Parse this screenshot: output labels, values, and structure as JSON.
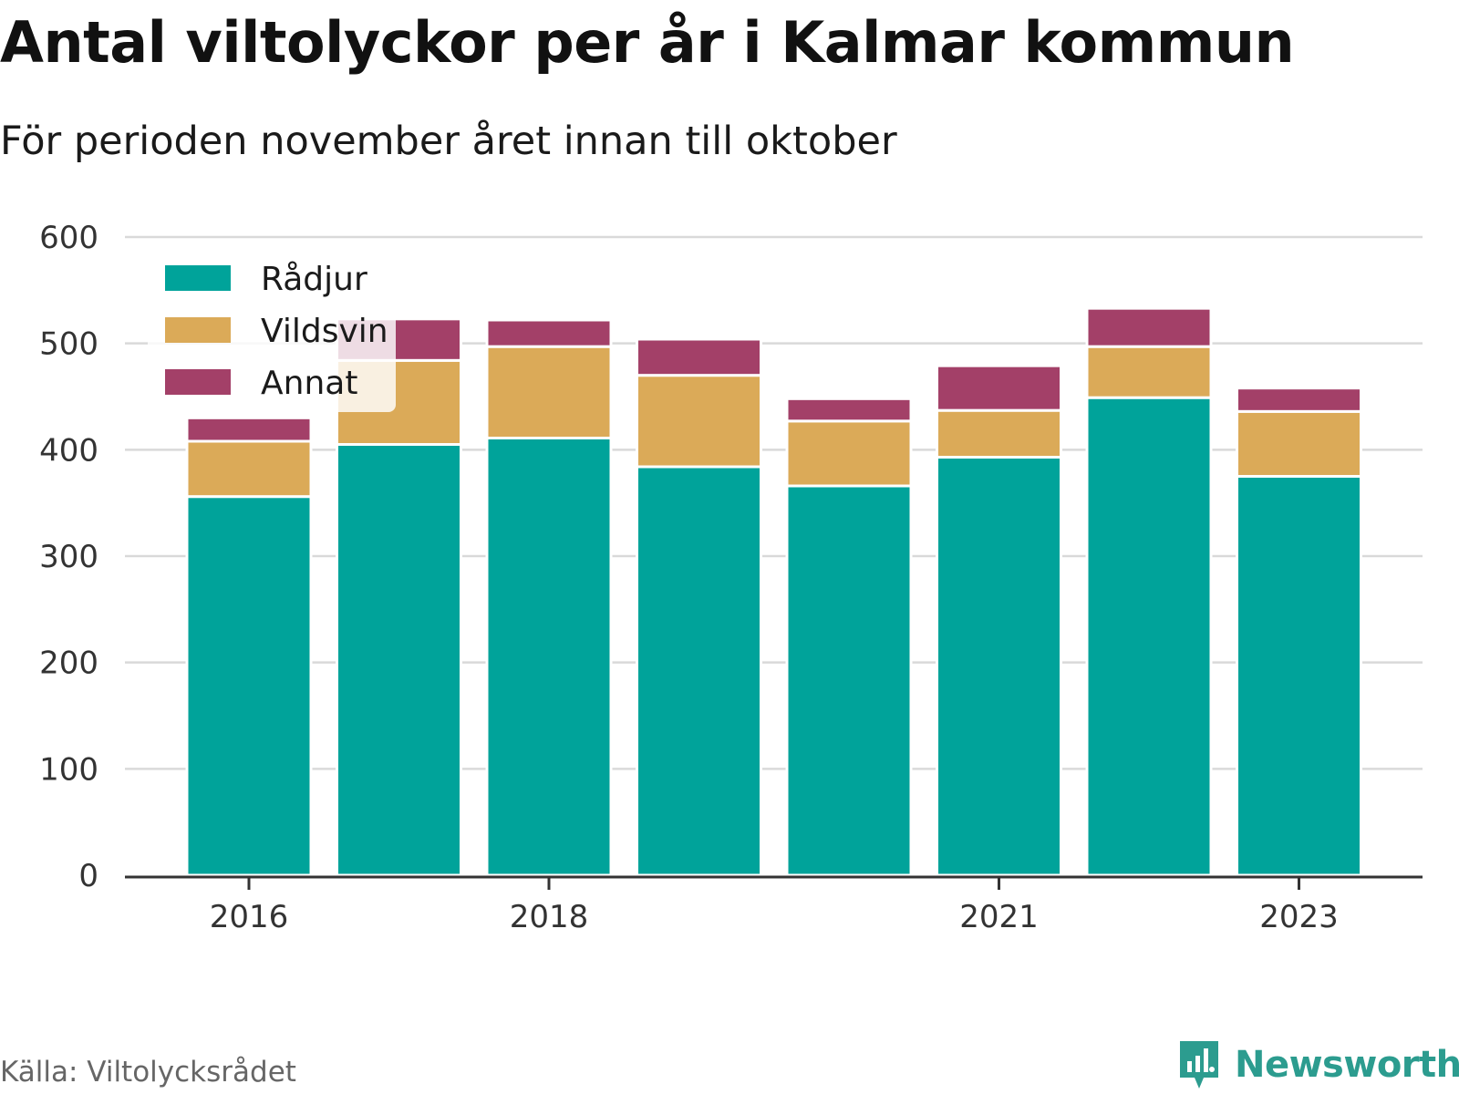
{
  "header": {
    "title": "Antal viltolyckor per år i Kalmar kommun",
    "subtitle": "För perioden november året innan till oktober"
  },
  "footer": {
    "source": "Källa: Viltolycksrådet",
    "brand": "Newsworthy",
    "brand_icon": "newsworthy-logo-icon"
  },
  "colors": {
    "Rådjur": "#00a39a",
    "Vildsvin": "#dbaa58",
    "Annat": "#a34068",
    "grid": "#d9d9d9",
    "axis": "#333333",
    "brand": "#2c9c8f"
  },
  "chart_data": {
    "type": "bar",
    "stacked": true,
    "categories": [
      "2016",
      "2017",
      "2018",
      "2019",
      "2020",
      "2021",
      "2022",
      "2023"
    ],
    "tick_labels": [
      "2016",
      "2018",
      "2021",
      "2023"
    ],
    "series": [
      {
        "name": "Rådjur",
        "values": [
          356,
          405,
          411,
          384,
          366,
          393,
          449,
          375
        ]
      },
      {
        "name": "Vildsvin",
        "values": [
          52,
          79,
          86,
          86,
          61,
          44,
          48,
          61
        ]
      },
      {
        "name": "Annat",
        "values": [
          22,
          39,
          25,
          34,
          21,
          42,
          36,
          22
        ]
      }
    ],
    "ylim": [
      0,
      600
    ],
    "yticks": [
      0,
      100,
      200,
      300,
      400,
      500,
      600
    ],
    "grid": true,
    "legend": "top-left"
  }
}
